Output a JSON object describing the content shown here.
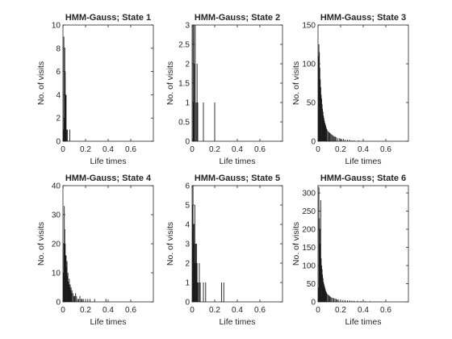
{
  "figure": {
    "background": "#ffffff",
    "bar_color": "#1a1a1a",
    "axis_color": "#262626"
  },
  "chart_data": [
    {
      "type": "bar",
      "title": "HMM-Gauss; State 1",
      "xlabel": "Life times",
      "ylabel": "No. of visits",
      "xlim": [
        0,
        0.8
      ],
      "ylim": [
        0,
        10
      ],
      "xticks": [
        "0",
        "0.2",
        "0.4",
        "0.6"
      ],
      "yticks": [
        "0",
        "2",
        "4",
        "6",
        "8",
        "10"
      ],
      "x": [
        0.004,
        0.008,
        0.012,
        0.016,
        0.02,
        0.024,
        0.028,
        0.032,
        0.04,
        0.06
      ],
      "values": [
        1,
        9,
        2,
        8,
        6,
        4,
        4,
        1,
        1,
        1
      ]
    },
    {
      "type": "bar",
      "title": "HMM-Gauss; State 2",
      "xlabel": "Life times",
      "ylabel": "No. of visits",
      "xlim": [
        0,
        0.8
      ],
      "ylim": [
        0,
        3
      ],
      "xticks": [
        "0",
        "0.2",
        "0.4",
        "0.6"
      ],
      "yticks": [
        "0",
        "0.5",
        "1",
        "1.5",
        "2",
        "2.5",
        "3"
      ],
      "x": [
        0.008,
        0.012,
        0.016,
        0.02,
        0.028,
        0.036,
        0.044,
        0.05,
        0.1,
        0.2
      ],
      "values": [
        3,
        1,
        3,
        2,
        3,
        1,
        2,
        1,
        1,
        1
      ]
    },
    {
      "type": "bar",
      "title": "HMM-Gauss; State 3",
      "xlabel": "Life times",
      "ylabel": "No. of visits",
      "xlim": [
        0,
        0.8
      ],
      "ylim": [
        0,
        150
      ],
      "xticks": [
        "0",
        "0.2",
        "0.4",
        "0.6"
      ],
      "yticks": [
        "0",
        "50",
        "100",
        "150"
      ],
      "x": [
        0.004,
        0.008,
        0.012,
        0.016,
        0.02,
        0.024,
        0.028,
        0.032,
        0.036,
        0.04,
        0.044,
        0.048,
        0.052,
        0.056,
        0.06,
        0.064,
        0.068,
        0.072,
        0.076,
        0.08,
        0.088,
        0.096,
        0.104,
        0.112,
        0.12,
        0.128,
        0.136,
        0.144,
        0.152,
        0.16,
        0.176,
        0.192,
        0.208,
        0.224,
        0.24,
        0.26,
        0.28,
        0.3,
        0.32,
        0.36,
        0.4
      ],
      "values": [
        110,
        125,
        115,
        95,
        80,
        70,
        60,
        55,
        48,
        42,
        38,
        33,
        30,
        27,
        24,
        22,
        20,
        18,
        16,
        15,
        13,
        12,
        11,
        10,
        9,
        8,
        7,
        6,
        6,
        5,
        4,
        4,
        3,
        3,
        2,
        2,
        2,
        1,
        1,
        1,
        1
      ]
    },
    {
      "type": "bar",
      "title": "HMM-Gauss; State 4",
      "xlabel": "Life times",
      "ylabel": "No. of visits",
      "xlim": [
        0,
        0.8
      ],
      "ylim": [
        0,
        40
      ],
      "xticks": [
        "0",
        "0.2",
        "0.4",
        "0.6"
      ],
      "yticks": [
        "0",
        "10",
        "20",
        "30",
        "40"
      ],
      "x": [
        0.004,
        0.008,
        0.012,
        0.016,
        0.02,
        0.024,
        0.028,
        0.032,
        0.036,
        0.04,
        0.044,
        0.048,
        0.052,
        0.056,
        0.06,
        0.064,
        0.068,
        0.072,
        0.076,
        0.08,
        0.088,
        0.096,
        0.104,
        0.112,
        0.12,
        0.13,
        0.14,
        0.15,
        0.16,
        0.17,
        0.18,
        0.2,
        0.22,
        0.24,
        0.28,
        0.38
      ],
      "values": [
        10,
        20,
        33,
        25,
        20,
        16,
        16,
        12,
        14,
        9,
        10,
        7,
        6,
        8,
        5,
        6,
        4,
        5,
        3,
        4,
        3,
        2,
        2,
        3,
        2,
        1,
        1,
        2,
        1,
        1,
        1,
        1,
        1,
        1,
        1,
        1
      ]
    },
    {
      "type": "bar",
      "title": "HMM-Gauss; State 5",
      "xlabel": "Life times",
      "ylabel": "No. of visits",
      "xlim": [
        0,
        0.8
      ],
      "ylim": [
        0,
        6
      ],
      "xticks": [
        "0",
        "0.2",
        "0.4",
        "0.6"
      ],
      "yticks": [
        "0",
        "1",
        "2",
        "3",
        "4",
        "5",
        "6"
      ],
      "x": [
        0.004,
        0.008,
        0.012,
        0.016,
        0.02,
        0.024,
        0.028,
        0.032,
        0.036,
        0.04,
        0.044,
        0.048,
        0.056,
        0.064,
        0.072,
        0.1,
        0.12,
        0.26,
        0.28
      ],
      "values": [
        5,
        6,
        4,
        4,
        3,
        5,
        2,
        3,
        2,
        3,
        2,
        1,
        1,
        2,
        1,
        1,
        1,
        1,
        1
      ]
    },
    {
      "type": "bar",
      "title": "HMM-Gauss; State 6",
      "xlabel": "Life times",
      "ylabel": "No. of visits",
      "xlim": [
        0,
        0.8
      ],
      "ylim": [
        0,
        320
      ],
      "xticks": [
        "0",
        "0.2",
        "0.4",
        "0.6"
      ],
      "yticks": [
        "0",
        "50",
        "100",
        "150",
        "200",
        "250",
        "300"
      ],
      "x": [
        0.004,
        0.008,
        0.012,
        0.016,
        0.02,
        0.024,
        0.028,
        0.032,
        0.036,
        0.04,
        0.044,
        0.048,
        0.052,
        0.056,
        0.06,
        0.064,
        0.068,
        0.072,
        0.076,
        0.08,
        0.088,
        0.096,
        0.104,
        0.112,
        0.12,
        0.13,
        0.14,
        0.15,
        0.16,
        0.17,
        0.18,
        0.2,
        0.22,
        0.24,
        0.26,
        0.28,
        0.3,
        0.32,
        0.35,
        0.38,
        0.42,
        0.46,
        0.5,
        0.55,
        0.6
      ],
      "values": [
        40,
        315,
        230,
        160,
        200,
        280,
        120,
        100,
        90,
        75,
        65,
        55,
        50,
        45,
        40,
        35,
        30,
        28,
        25,
        22,
        20,
        18,
        16,
        14,
        12,
        11,
        10,
        9,
        8,
        7,
        6,
        6,
        5,
        5,
        4,
        4,
        3,
        3,
        3,
        2,
        2,
        2,
        1,
        1,
        1
      ]
    }
  ]
}
